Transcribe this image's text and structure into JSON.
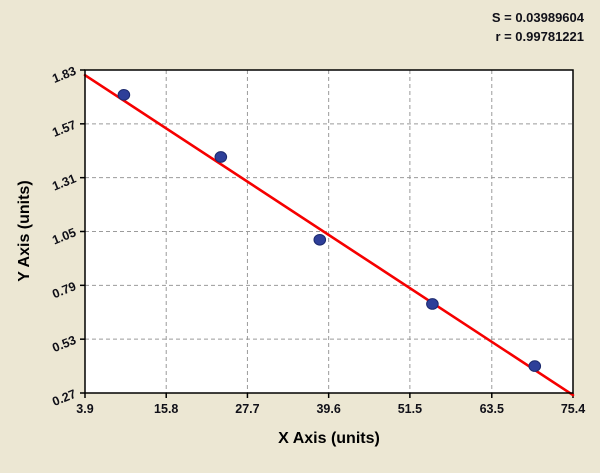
{
  "chart_data": {
    "type": "scatter",
    "title": "",
    "xlabel": "X Axis (units)",
    "ylabel": "Y Axis (units)",
    "xlim": [
      3.9,
      75.4
    ],
    "ylim": [
      0.27,
      1.83
    ],
    "x_tick_labels": [
      "3.9",
      "15.8",
      "27.7",
      "39.6",
      "51.5",
      "63.5",
      "75.4"
    ],
    "y_tick_labels": [
      "0.27",
      "0.53",
      "0.79",
      "1.05",
      "1.31",
      "1.57",
      "1.83"
    ],
    "grid": "dashed",
    "legend": "none",
    "points": [
      {
        "x": 9.6,
        "y": 1.71
      },
      {
        "x": 23.8,
        "y": 1.41
      },
      {
        "x": 38.3,
        "y": 1.01
      },
      {
        "x": 54.8,
        "y": 0.7
      },
      {
        "x": 69.8,
        "y": 0.4
      }
    ],
    "fit_line": {
      "x1": 3.9,
      "y1": 1.805,
      "x2": 75.4,
      "y2": 0.26
    },
    "stats": {
      "s": "S = 0.03989604",
      "r": "r = 0.99781221"
    }
  },
  "colors": {
    "background": "#ece7d3",
    "plot_bg": "#ffffff",
    "grid": "#9b9b9b",
    "axis": "#000000",
    "line": "#f60000",
    "point": "#2e3f99",
    "point_edge": "#1c2a6e",
    "text": "#101018"
  }
}
